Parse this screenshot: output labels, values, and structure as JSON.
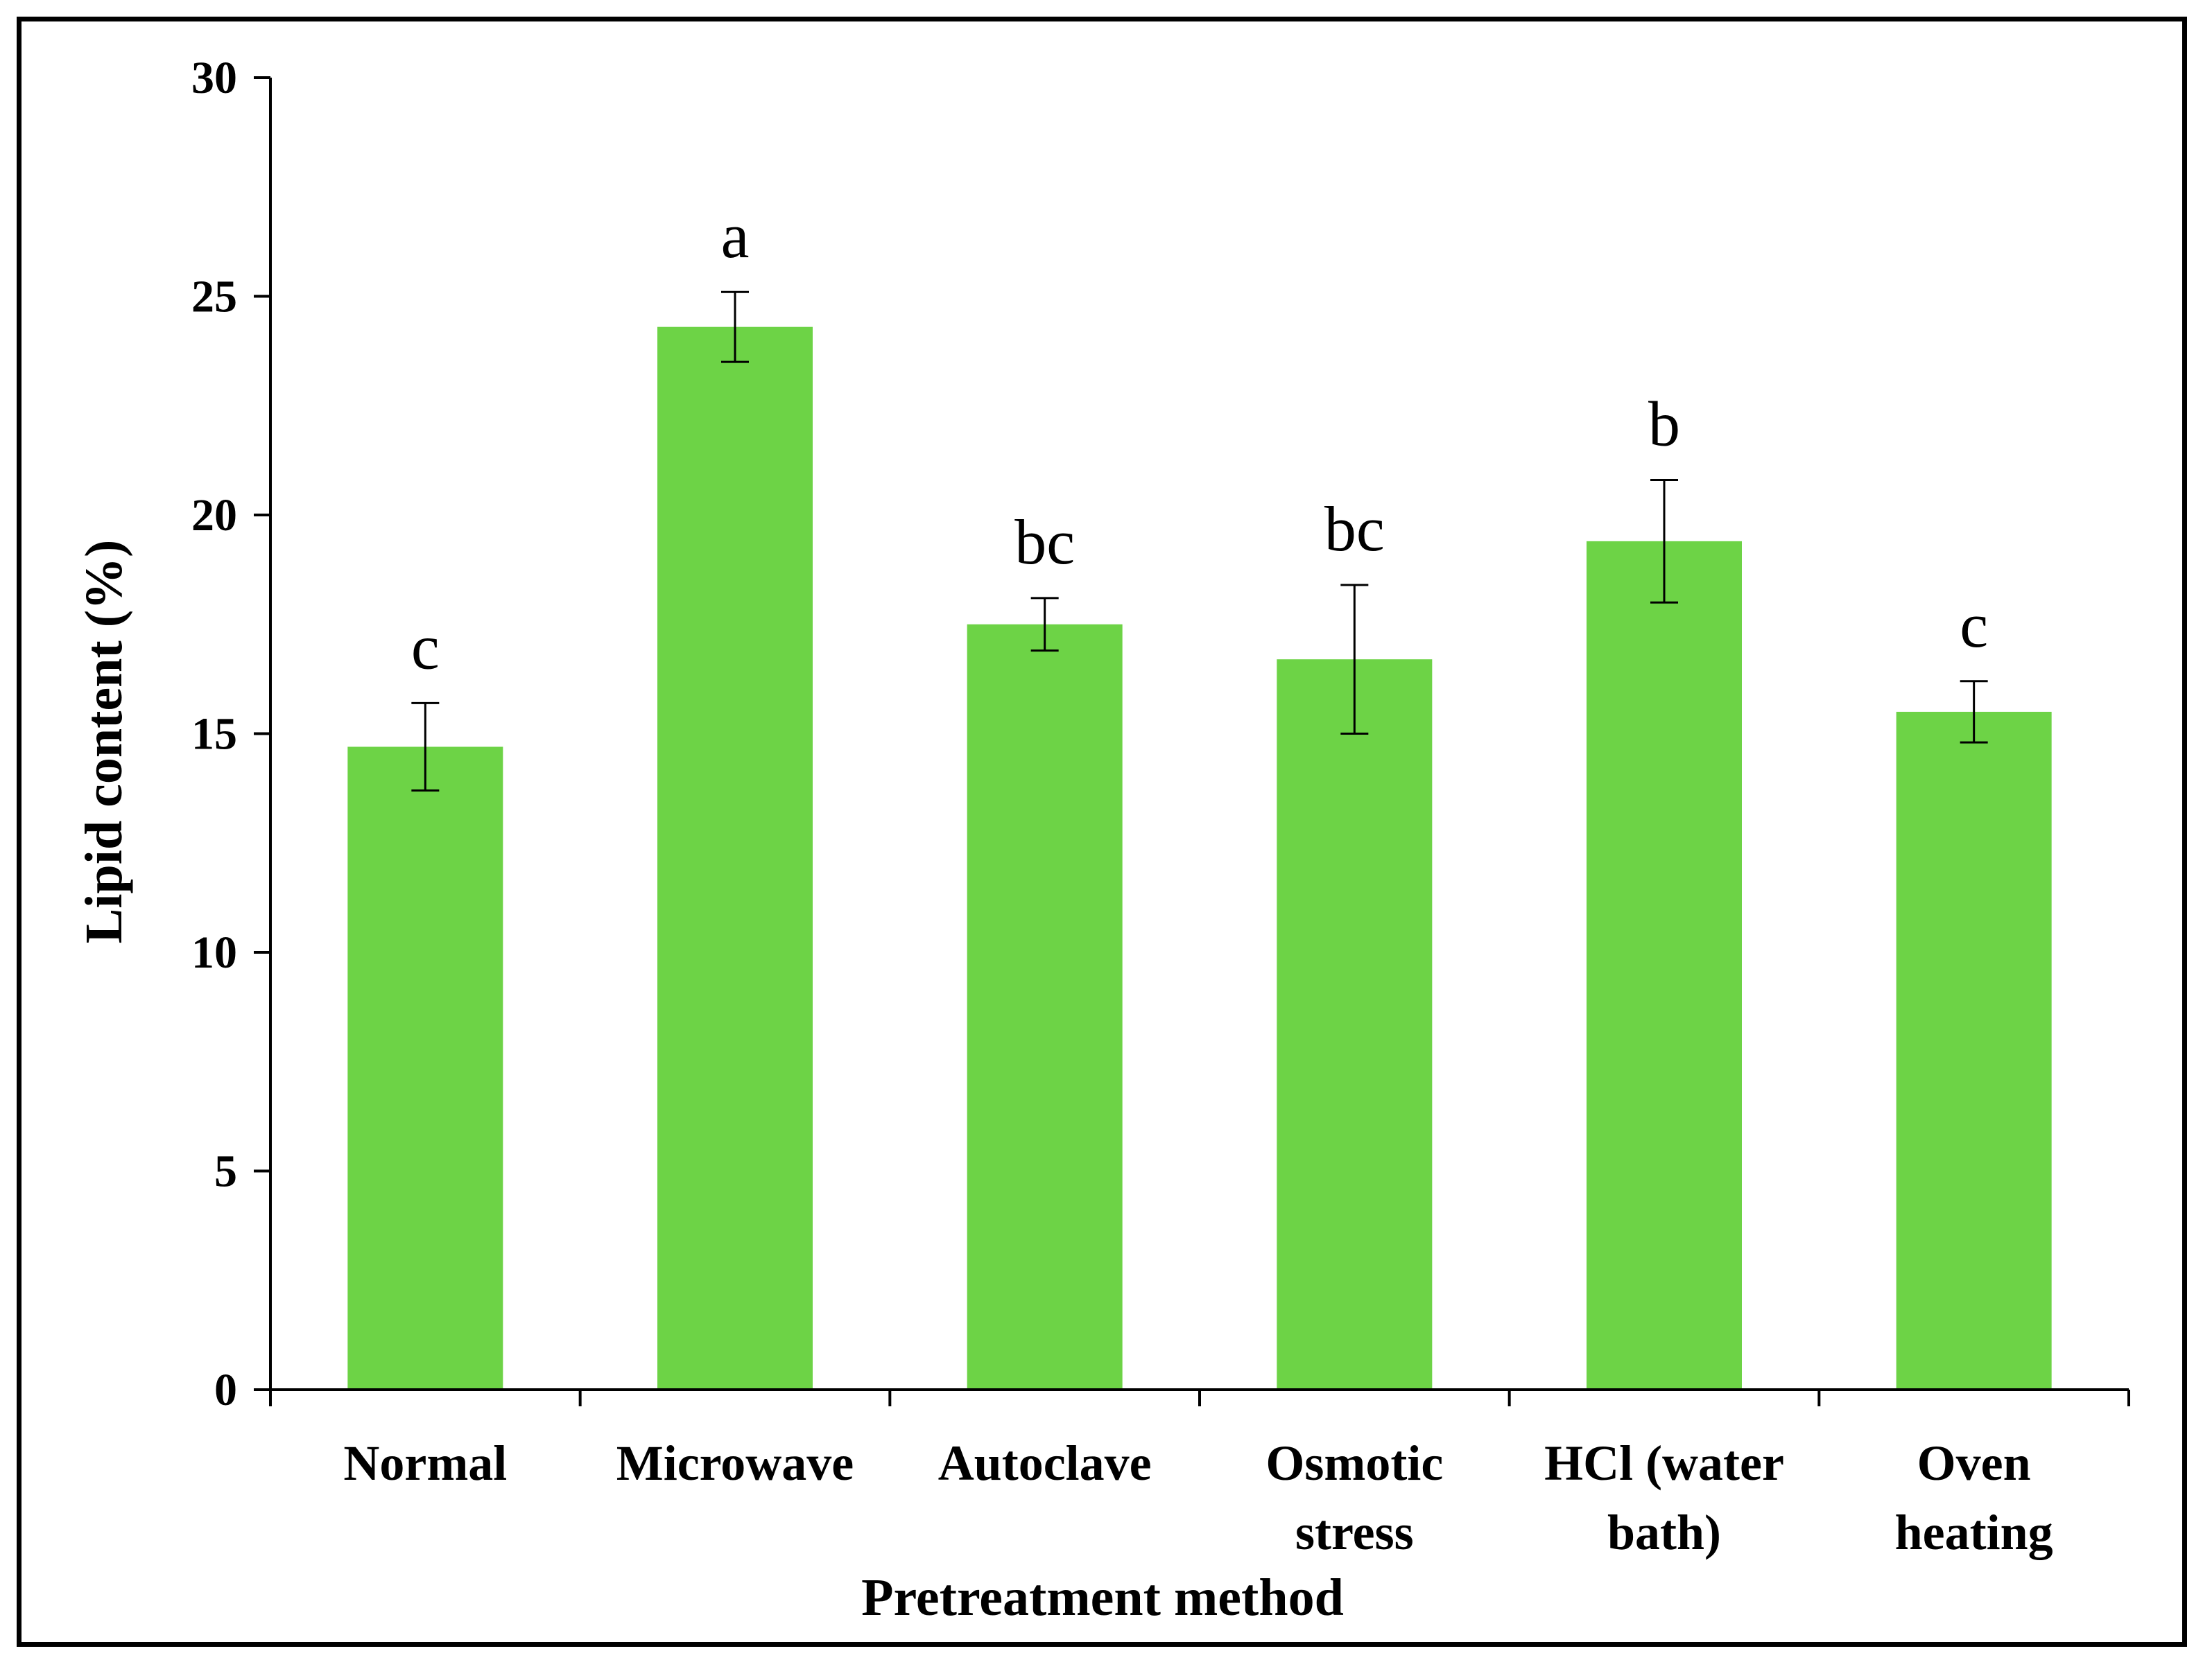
{
  "chart_data": {
    "type": "bar",
    "title": "",
    "xlabel": "Pretreatment method",
    "ylabel": "Lipid content (%)",
    "ylim": [
      0,
      30
    ],
    "yticks": [
      0,
      5,
      10,
      15,
      20,
      25,
      30
    ],
    "grid": false,
    "categories": [
      [
        "Normal"
      ],
      [
        "Microwave"
      ],
      [
        "Autoclave"
      ],
      [
        "Osmotic",
        "stress"
      ],
      [
        "HCl (water",
        "bath)"
      ],
      [
        "Oven",
        "heating"
      ]
    ],
    "values": [
      14.7,
      24.3,
      17.5,
      16.7,
      19.4,
      15.5
    ],
    "error": [
      1.0,
      0.8,
      0.6,
      1.7,
      1.4,
      0.7
    ],
    "significance": [
      "c",
      "a",
      "bc",
      "bc",
      "b",
      "c"
    ],
    "bar_color": "#6dd346"
  }
}
